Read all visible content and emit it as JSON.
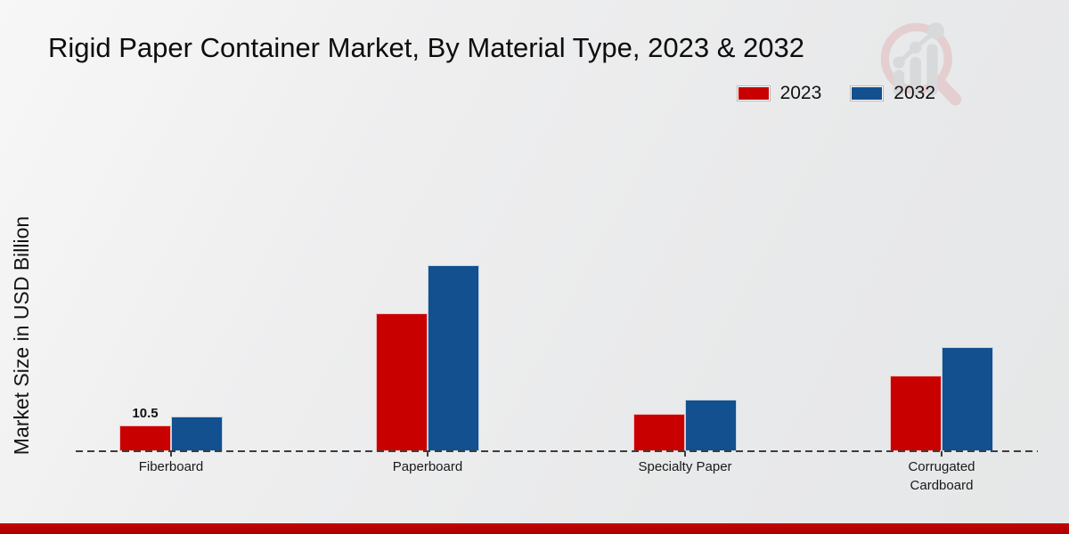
{
  "chart_data": {
    "type": "bar",
    "title": "Rigid Paper Container Market, By Material Type, 2023 & 2032",
    "ylabel": "Market Size in USD Billion",
    "xlabel": "",
    "categories": [
      "Fiberboard",
      "Paperboard",
      "Specialty Paper",
      "Corrugated Cardboard"
    ],
    "series": [
      {
        "name": "2023",
        "color": "#c80000",
        "values": [
          10.5,
          56.1,
          15.2,
          30.8
        ]
      },
      {
        "name": "2032",
        "color": "#12508f",
        "values": [
          14.1,
          75.7,
          21.0,
          42.4
        ]
      }
    ],
    "annotations": [
      {
        "series_index": 0,
        "category_index": 0,
        "text": "10.5"
      }
    ],
    "ylim": [
      0,
      80
    ],
    "grid": false,
    "legend_position": "top-right",
    "baseline_style": "dashed"
  },
  "colors": {
    "series_2023": "#c80000",
    "series_2032": "#12508f",
    "footer_bar": "#b80000",
    "axis_dash": "#3d3d3d",
    "watermark_pink": "#e2bdbf",
    "watermark_gray": "#cfd0d2"
  }
}
